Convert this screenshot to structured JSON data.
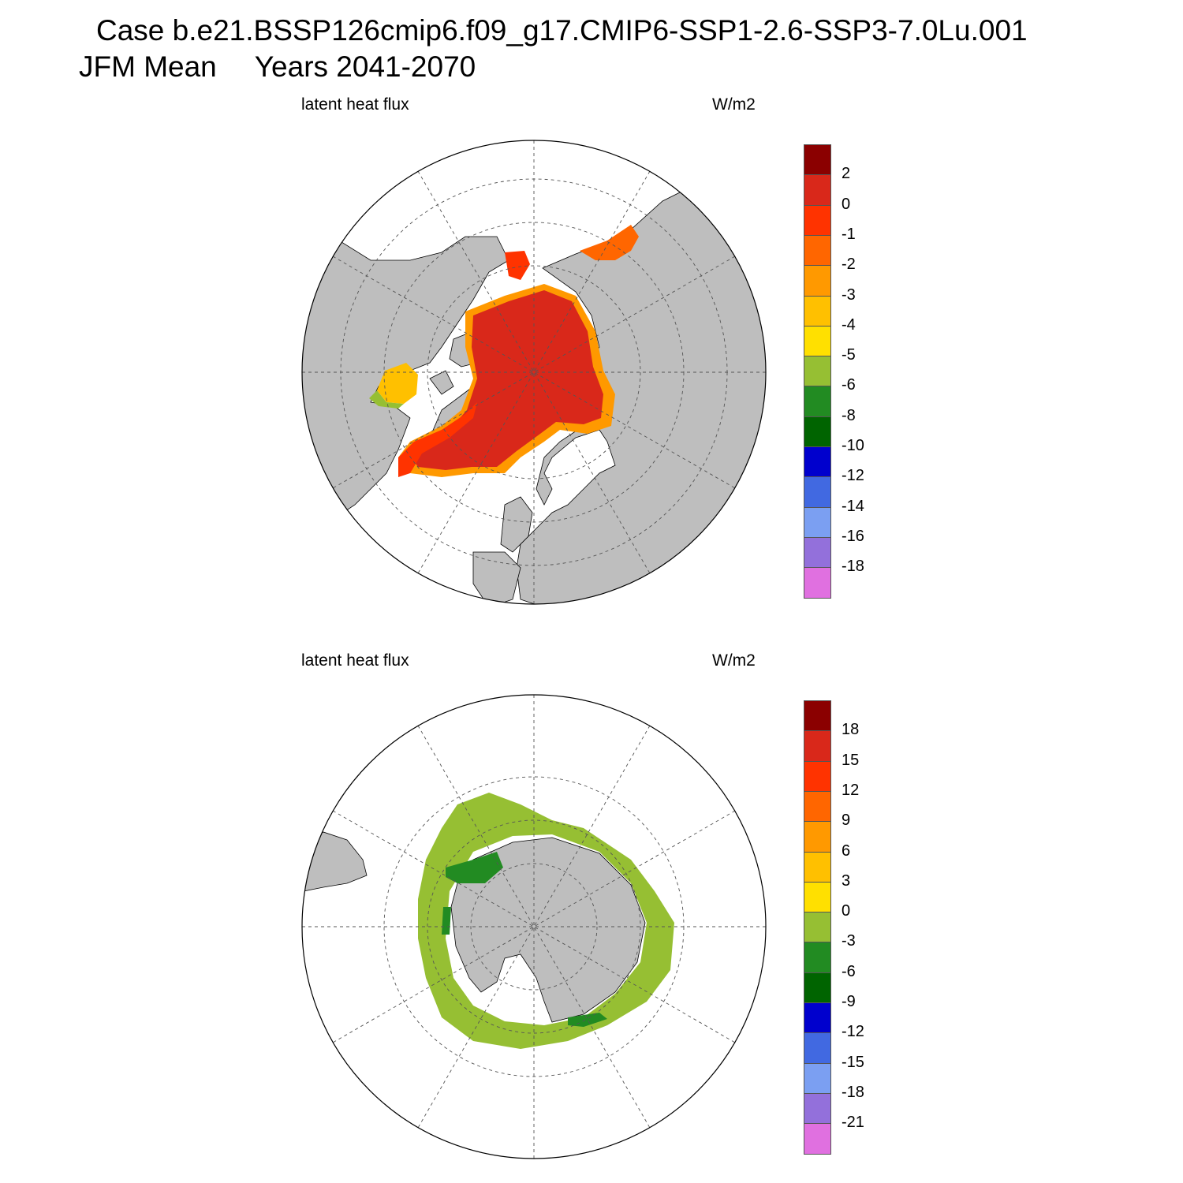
{
  "header": {
    "case_line": "Case b.e21.BSSP126cmip6.f09_g17.CMIP6-SSP1-2.6-SSP3-7.0Lu.001",
    "season": "JFM Mean",
    "years": "Years 2041-2070"
  },
  "panels": [
    {
      "name": "arctic",
      "variable": "latent heat flux",
      "units": "W/m2",
      "colorbar": {
        "colors": [
          "#8b0000",
          "#d9281a",
          "#ff3300",
          "#ff6600",
          "#ff9900",
          "#ffc000",
          "#ffe000",
          "#96bf33",
          "#228b22",
          "#006400",
          "#0000cd",
          "#4169e1",
          "#7b9ff2",
          "#9370db",
          "#e070e0"
        ],
        "labels": [
          "2",
          "0",
          "-1",
          "-2",
          "-3",
          "-4",
          "-5",
          "-6",
          "-8",
          "-10",
          "-12",
          "-14",
          "-16",
          "-18"
        ]
      }
    },
    {
      "name": "antarctic",
      "variable": "latent heat flux",
      "units": "W/m2",
      "colorbar": {
        "colors": [
          "#8b0000",
          "#d9281a",
          "#ff3300",
          "#ff6600",
          "#ff9900",
          "#ffc000",
          "#ffe000",
          "#96bf33",
          "#228b22",
          "#006400",
          "#0000cd",
          "#4169e1",
          "#7b9ff2",
          "#9370db",
          "#e070e0"
        ],
        "labels": [
          "18",
          "15",
          "12",
          "9",
          "6",
          "3",
          "0",
          "-3",
          "-6",
          "-9",
          "-12",
          "-15",
          "-18",
          "-21"
        ]
      }
    }
  ],
  "colors": {
    "land": "#bebebe",
    "ocean_background": "#ffffff"
  }
}
